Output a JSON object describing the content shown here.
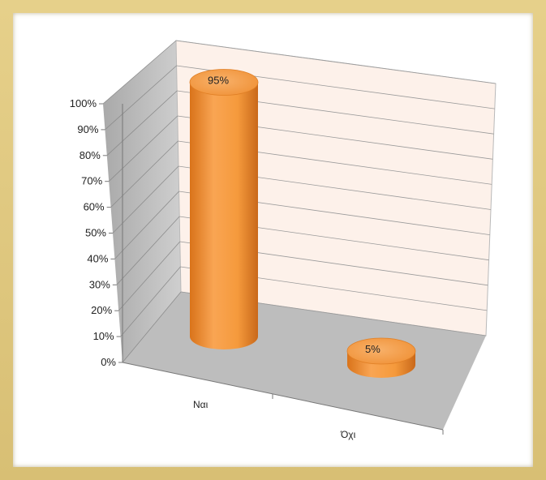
{
  "chart_data": {
    "type": "bar",
    "style": "3d-cylinder",
    "categories": [
      "Ναι",
      "Όχι"
    ],
    "values": [
      95,
      5
    ],
    "data_labels": [
      "95%",
      "5%"
    ],
    "y_ticks": [
      "0%",
      "10%",
      "20%",
      "30%",
      "40%",
      "50%",
      "60%",
      "70%",
      "80%",
      "90%",
      "100%"
    ],
    "ylim": [
      0,
      100
    ],
    "y_unit": "%",
    "grid": true,
    "legend": "none",
    "colors": {
      "bar": "#f59a3c",
      "bar_dark": "#d9731a",
      "bar_top": "#f7a85a",
      "back_wall": "#fdf1ea",
      "side_wall": "#b9b9b9",
      "floor": "#bdbdbd",
      "frame": "#d9c27a"
    }
  }
}
